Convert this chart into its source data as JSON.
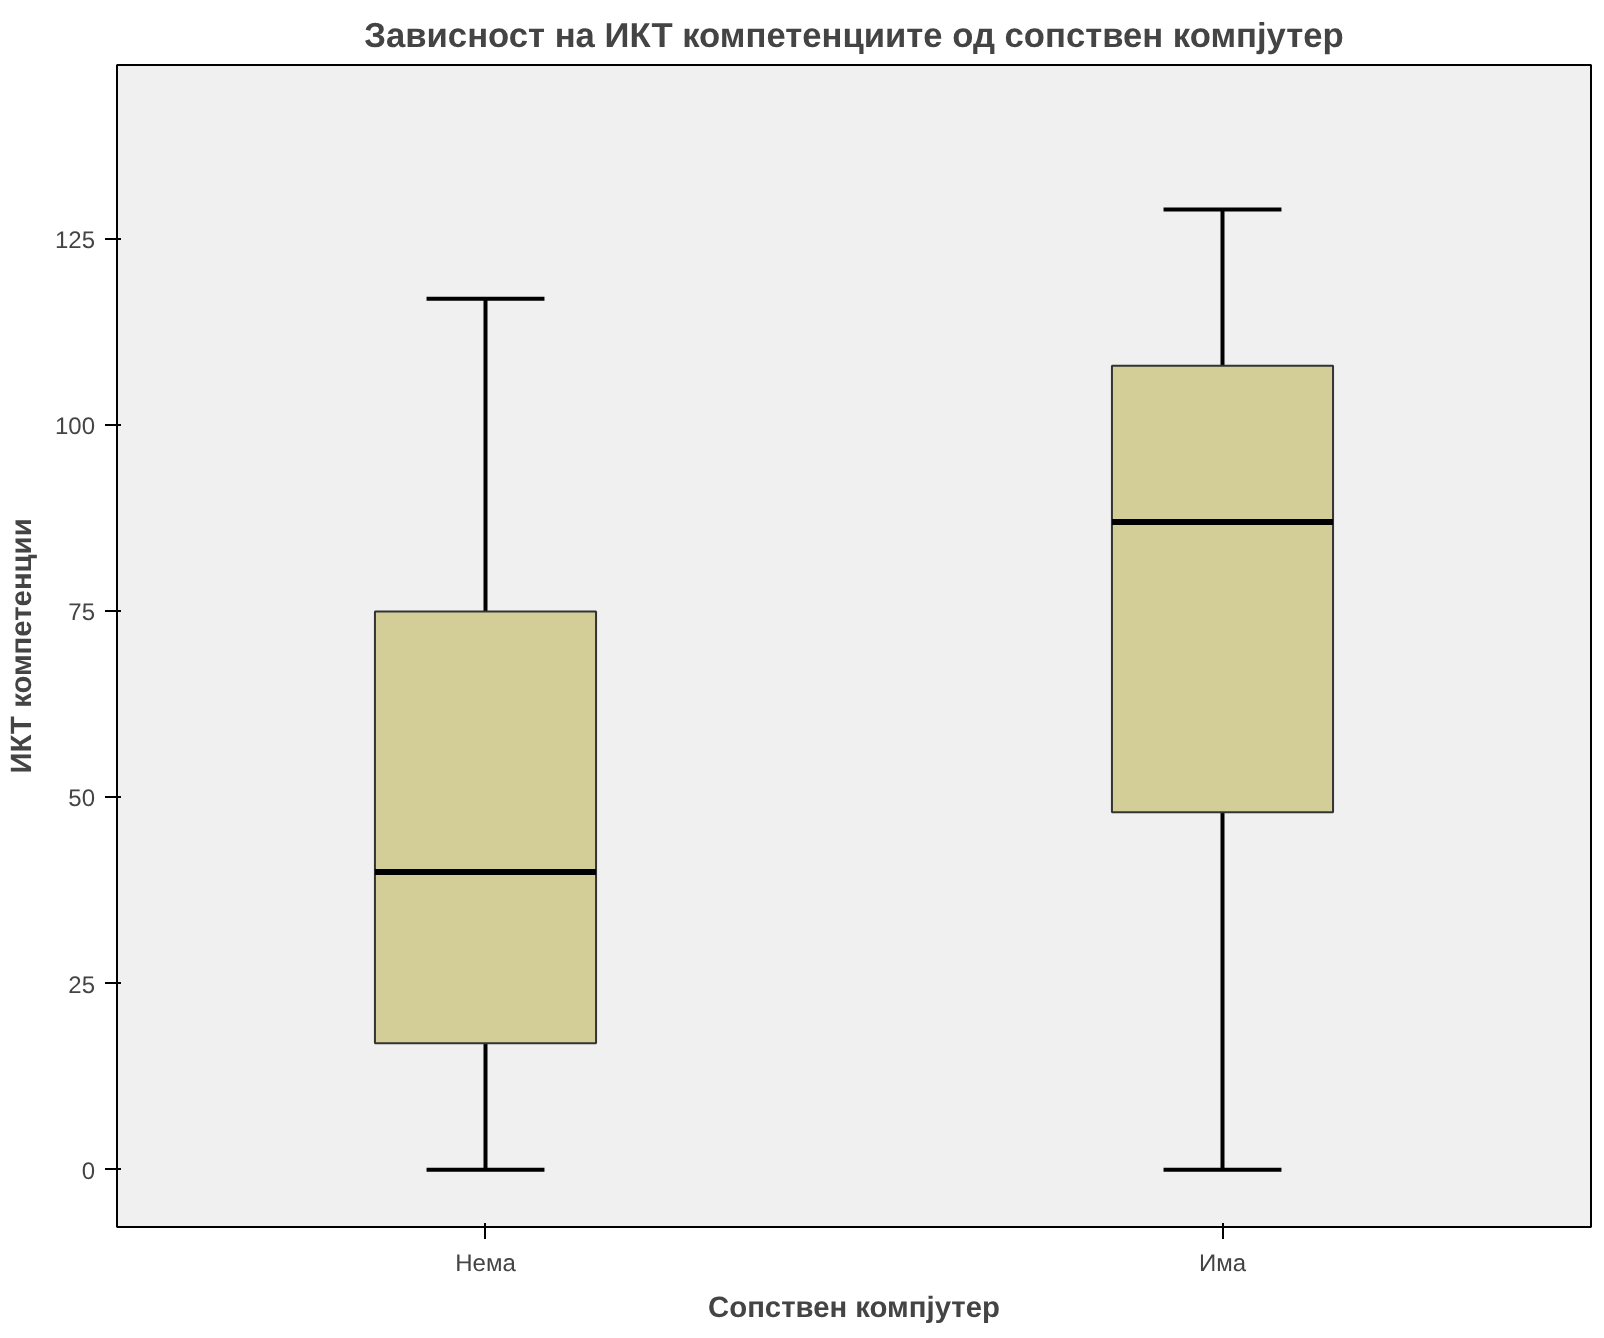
{
  "chart_data": {
    "type": "box",
    "title": "Зависност на ИКТ компетенциите од сопствен компјутер",
    "xlabel": "Сопствен компјутер",
    "ylabel": "ИКТ компетенции",
    "categories": [
      "Нема",
      "Има"
    ],
    "color": "#d3ce97",
    "boxes": [
      {
        "low": 0,
        "q1": 17,
        "median": 40,
        "q3": 75,
        "high": 117
      },
      {
        "low": 0,
        "q1": 48,
        "median": 87,
        "q3": 108,
        "high": 129
      }
    ],
    "ylim": [
      -7.7,
      148.4
    ],
    "yticks": [
      0,
      25,
      50,
      75,
      100,
      125
    ],
    "grid": false
  }
}
